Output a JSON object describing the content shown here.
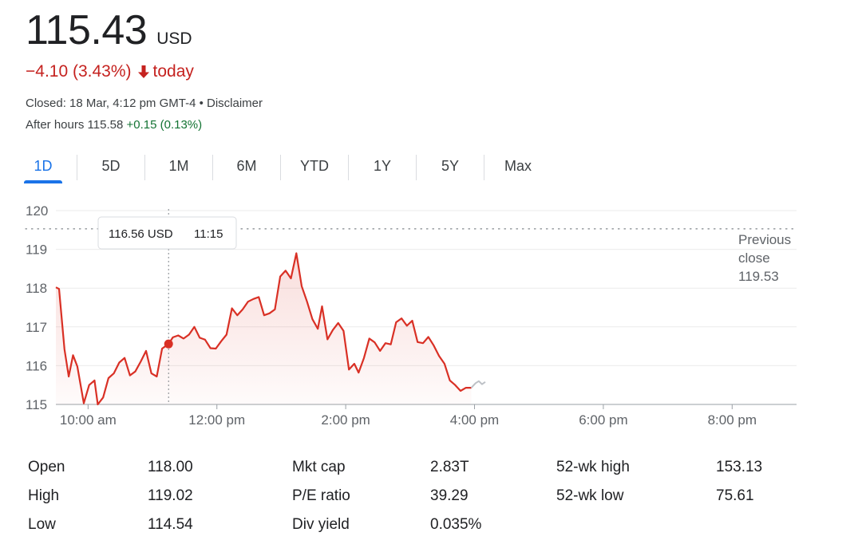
{
  "quote": {
    "price": "115.43",
    "currency": "USD",
    "change_text": "−4.10 (3.43%)",
    "change_suffix": "today",
    "closed_text": "Closed: 18 Mar, 4:12 pm GMT-4 • Disclaimer",
    "after_hours_label": "After hours 115.58",
    "after_hours_change": "+0.15 (0.13%)"
  },
  "colors": {
    "negative": "#c5221f",
    "positive": "#137333",
    "accent": "#1a73e8",
    "line": "#d93025"
  },
  "tabs": [
    {
      "label": "1D",
      "active": true
    },
    {
      "label": "5D"
    },
    {
      "label": "1M"
    },
    {
      "label": "6M"
    },
    {
      "label": "YTD"
    },
    {
      "label": "1Y"
    },
    {
      "label": "5Y"
    },
    {
      "label": "Max"
    }
  ],
  "chart_data": {
    "type": "line",
    "y_ticks": [
      120,
      119,
      118,
      117,
      116,
      115
    ],
    "ylim": [
      115,
      120
    ],
    "x_ticks": [
      {
        "label": "10:00 am",
        "minutes": 600
      },
      {
        "label": "12:00 pm",
        "minutes": 720
      },
      {
        "label": "2:00 pm",
        "minutes": 840
      },
      {
        "label": "4:00 pm",
        "minutes": 960
      },
      {
        "label": "6:00 pm",
        "minutes": 1080
      },
      {
        "label": "8:00 pm",
        "minutes": 1200
      }
    ],
    "xlim_minutes": [
      570,
      1260
    ],
    "previous_close": {
      "lines": [
        "Previous",
        "close",
        "119.53"
      ],
      "value": 119.53
    },
    "tooltip": {
      "price": "116.56 USD",
      "time": "11:15",
      "minutes": 675,
      "value": 116.56
    },
    "series": [
      {
        "session": "regular",
        "points": [
          [
            570,
            118.02
          ],
          [
            573,
            117.98
          ],
          [
            578,
            116.42
          ],
          [
            582,
            115.72
          ],
          [
            586,
            116.27
          ],
          [
            590,
            115.98
          ],
          [
            596,
            115.03
          ],
          [
            601,
            115.5
          ],
          [
            606,
            115.62
          ],
          [
            609,
            115.0
          ],
          [
            614,
            115.18
          ],
          [
            619,
            115.68
          ],
          [
            624,
            115.8
          ],
          [
            629,
            116.08
          ],
          [
            634,
            116.2
          ],
          [
            639,
            115.75
          ],
          [
            644,
            115.85
          ],
          [
            649,
            116.1
          ],
          [
            654,
            116.38
          ],
          [
            659,
            115.8
          ],
          [
            664,
            115.72
          ],
          [
            669,
            116.44
          ],
          [
            675,
            116.56
          ],
          [
            679,
            116.73
          ],
          [
            684,
            116.78
          ],
          [
            689,
            116.7
          ],
          [
            694,
            116.8
          ],
          [
            699,
            117.0
          ],
          [
            704,
            116.72
          ],
          [
            709,
            116.67
          ],
          [
            714,
            116.45
          ],
          [
            719,
            116.44
          ],
          [
            724,
            116.63
          ],
          [
            729,
            116.8
          ],
          [
            734,
            117.48
          ],
          [
            739,
            117.3
          ],
          [
            744,
            117.45
          ],
          [
            749,
            117.65
          ],
          [
            754,
            117.72
          ],
          [
            759,
            117.77
          ],
          [
            764,
            117.3
          ],
          [
            769,
            117.35
          ],
          [
            774,
            117.45
          ],
          [
            779,
            118.3
          ],
          [
            784,
            118.45
          ],
          [
            789,
            118.25
          ],
          [
            794,
            118.9
          ],
          [
            799,
            118.05
          ],
          [
            804,
            117.65
          ],
          [
            809,
            117.2
          ],
          [
            814,
            116.95
          ],
          [
            818,
            117.53
          ],
          [
            823,
            116.68
          ],
          [
            828,
            116.92
          ],
          [
            833,
            117.1
          ],
          [
            838,
            116.9
          ],
          [
            843,
            115.9
          ],
          [
            848,
            116.05
          ],
          [
            852,
            115.82
          ],
          [
            857,
            116.2
          ],
          [
            862,
            116.7
          ],
          [
            867,
            116.6
          ],
          [
            872,
            116.38
          ],
          [
            877,
            116.58
          ],
          [
            882,
            116.55
          ],
          [
            887,
            117.12
          ],
          [
            892,
            117.22
          ],
          [
            897,
            117.03
          ],
          [
            902,
            117.16
          ],
          [
            907,
            116.61
          ],
          [
            912,
            116.58
          ],
          [
            917,
            116.74
          ],
          [
            922,
            116.52
          ],
          [
            927,
            116.25
          ],
          [
            932,
            116.05
          ],
          [
            937,
            115.62
          ],
          [
            942,
            115.5
          ],
          [
            947,
            115.35
          ],
          [
            952,
            115.43
          ],
          [
            957,
            115.43
          ]
        ]
      },
      {
        "session": "after_hours",
        "points": [
          [
            957,
            115.43
          ],
          [
            961,
            115.55
          ],
          [
            964,
            115.6
          ],
          [
            967,
            115.52
          ],
          [
            970,
            115.58
          ]
        ]
      }
    ]
  },
  "stats": [
    {
      "label": "Open",
      "value": "118.00"
    },
    {
      "label": "High",
      "value": "119.02"
    },
    {
      "label": "Low",
      "value": "114.54"
    },
    {
      "label": "Mkt cap",
      "value": "2.83T"
    },
    {
      "label": "P/E ratio",
      "value": "39.29"
    },
    {
      "label": "Div yield",
      "value": "0.035%"
    },
    {
      "label": "52-wk high",
      "value": "153.13"
    },
    {
      "label": "52-wk low",
      "value": "75.61"
    }
  ]
}
